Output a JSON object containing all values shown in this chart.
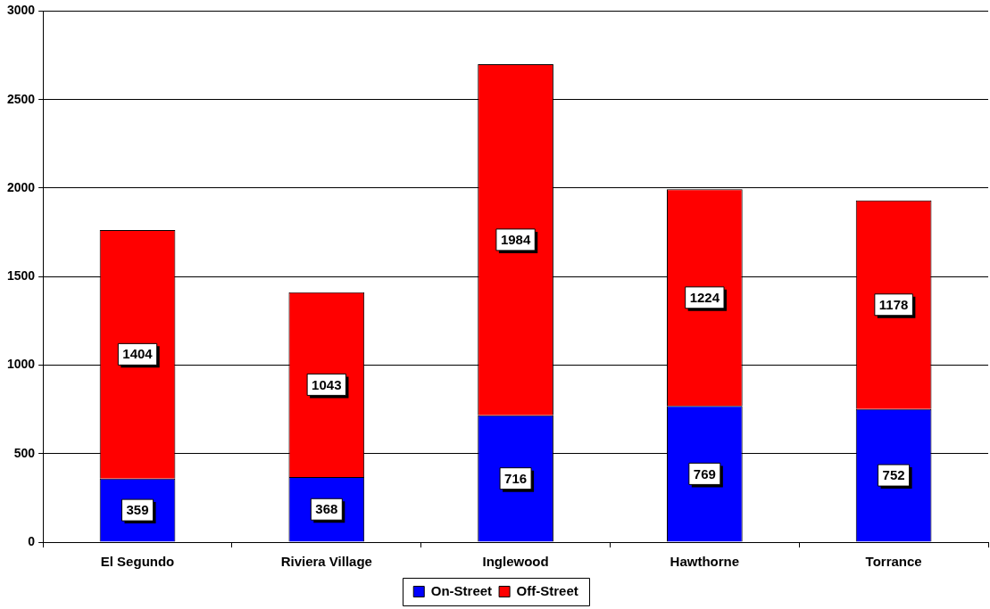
{
  "chart_data": {
    "type": "bar",
    "stacked": true,
    "categories": [
      "El Segundo",
      "Riviera Village",
      "Inglewood",
      "Hawthorne",
      "Torrance"
    ],
    "series": [
      {
        "name": "On-Street",
        "color": "#0000ff",
        "values": [
          359,
          368,
          716,
          769,
          752
        ]
      },
      {
        "name": "Off-Street",
        "color": "#ff0000",
        "values": [
          1404,
          1043,
          1984,
          1224,
          1178
        ]
      }
    ],
    "ylim": [
      0,
      3000
    ],
    "yticks": [
      0,
      500,
      1000,
      1500,
      2000,
      2500,
      3000
    ],
    "grid": "y",
    "legend": "bottom",
    "data_labels": true
  }
}
